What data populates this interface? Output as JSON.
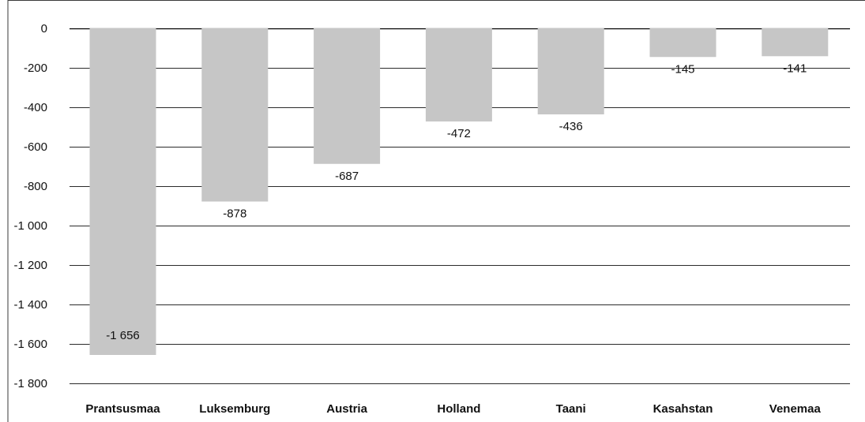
{
  "chart_data": {
    "type": "bar",
    "categories": [
      "Prantsusmaa",
      "Luksemburg",
      "Austria",
      "Holland",
      "Taani",
      "Kasahstan",
      "Venemaa"
    ],
    "values": [
      -1656,
      -878,
      -687,
      -472,
      -436,
      -145,
      -141
    ],
    "value_labels": [
      "-1 656",
      "-878",
      "-687",
      "-472",
      "-436",
      "-145",
      "-141"
    ],
    "y_ticks": [
      0,
      -200,
      -400,
      -600,
      -800,
      -1000,
      -1200,
      -1400,
      -1600,
      -1800
    ],
    "y_tick_labels": [
      "0",
      "-200",
      "-400",
      "-600",
      "-800",
      "-1 000",
      "-1 200",
      "-1 400",
      "-1 600",
      "-1 800"
    ],
    "ylim": [
      -1800,
      0
    ],
    "grid": true,
    "bar_color": "#c6c6c6",
    "title": "",
    "xlabel": "",
    "ylabel": ""
  }
}
